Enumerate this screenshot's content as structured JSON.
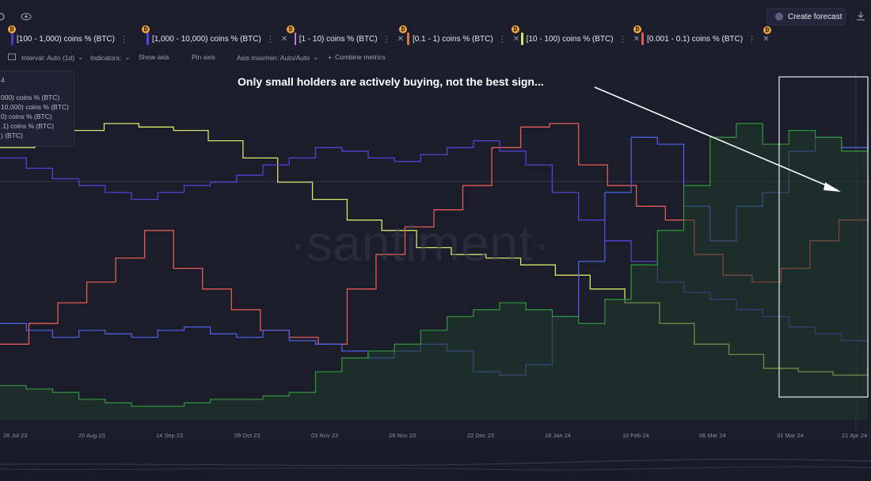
{
  "toolbar_top": {
    "create_forecast": "Create forecast",
    "icons": [
      "settings-icon",
      "eye-icon",
      "download-icon"
    ]
  },
  "chips": [
    {
      "label": "[100 - 1,000) coins % (BTC)",
      "color": "#4a3ad6"
    },
    {
      "label": "[1,000 - 10,000) coins % (BTC)",
      "color": "#4c46e8"
    },
    {
      "label": "[1 - 10) coins % (BTC)",
      "color": "#c77ad8"
    },
    {
      "label": "[0.1 - 1) coins % (BTC)",
      "color": "#e8743f"
    },
    {
      "label": "[10 - 100) coins % (BTC)",
      "color": "#d6e86a"
    },
    {
      "label": "[0.001 - 0.1) coins % (BTC)",
      "color": "#e45a55"
    }
  ],
  "toolbar": {
    "interval": "Interval: Auto (1d)",
    "indicators": "Indicators:",
    "show_axis": "Show axis",
    "pin_axis": "Pin axis",
    "axis_minmax": "Axis max/min: Auto/Auto",
    "combine": "Combine metrics"
  },
  "legend_panel": {
    "header": "4",
    "lines": [
      "000) coins % (BTC)",
      "10,000) coins % (BTC)",
      "0) coins % (BTC)",
      ".1) coins % (BTC)",
      ") (BTC)"
    ]
  },
  "watermark": "·santiment·",
  "annotation": "Only small holders are actively buying, not the best sign...",
  "chart_data": {
    "type": "line",
    "x_labels": [
      "26 Jul 23",
      "20 Aug 23",
      "14 Sep 23",
      "09 Oct 23",
      "03 Nov 23",
      "28 Nov 23",
      "22 Dec 23",
      "16 Jan 24",
      "10 Feb 24",
      "06 Mar 24",
      "31 Mar 24",
      "21 Apr 24"
    ],
    "y_axis": "relative (no printed scale)",
    "series": [
      {
        "color": "#d9e36b",
        "style": "line",
        "values": [
          0.79,
          0.82,
          0.84,
          0.86,
          0.85,
          0.84,
          0.81,
          0.76,
          0.69,
          0.64,
          0.58,
          0.55,
          0.5,
          0.48,
          0.47,
          0.45,
          0.42,
          0.38,
          0.34,
          0.28,
          0.22,
          0.19,
          0.15,
          0.14,
          0.13,
          0.15
        ]
      },
      {
        "color": "#e35b57",
        "style": "line",
        "values": [
          0.22,
          0.28,
          0.34,
          0.4,
          0.47,
          0.55,
          0.44,
          0.38,
          0.32,
          0.26,
          0.24,
          0.22,
          0.38,
          0.48,
          0.56,
          0.61,
          0.68,
          0.79,
          0.85,
          0.86,
          0.74,
          0.68,
          0.62,
          0.58,
          0.48,
          0.42,
          0.4,
          0.44,
          0.52,
          0.58,
          0.71
        ]
      },
      {
        "color": "#4e5ee0",
        "style": "line",
        "values": [
          0.28,
          0.26,
          0.24,
          0.26,
          0.25,
          0.24,
          0.26,
          0.27,
          0.25,
          0.24,
          0.26,
          0.23,
          0.22,
          0.2,
          0.18,
          0.2,
          0.22,
          0.2,
          0.14,
          0.13,
          0.16,
          0.3,
          0.46,
          0.66,
          0.82,
          0.8,
          0.62,
          0.52,
          0.62,
          0.66,
          0.78,
          0.82,
          0.79,
          0.83
        ]
      },
      {
        "color": "#5a3fd6",
        "style": "line",
        "values": [
          0.76,
          0.73,
          0.7,
          0.68,
          0.66,
          0.64,
          0.66,
          0.68,
          0.69,
          0.71,
          0.74,
          0.76,
          0.79,
          0.78,
          0.76,
          0.75,
          0.77,
          0.79,
          0.81,
          0.78,
          0.74,
          0.66,
          0.58,
          0.52,
          0.46,
          0.4,
          0.37,
          0.35,
          0.32,
          0.3,
          0.27,
          0.25,
          0.23,
          0.22
        ]
      },
      {
        "color": "#2f8f3a",
        "style": "area",
        "values": [
          0.1,
          0.09,
          0.08,
          0.06,
          0.05,
          0.04,
          0.04,
          0.05,
          0.06,
          0.06,
          0.07,
          0.08,
          0.14,
          0.18,
          0.2,
          0.22,
          0.26,
          0.3,
          0.32,
          0.34,
          0.32,
          0.3,
          0.28,
          0.35,
          0.45,
          0.55,
          0.68,
          0.82,
          0.86,
          0.8,
          0.84,
          0.82,
          0.78,
          0.8
        ]
      }
    ]
  }
}
